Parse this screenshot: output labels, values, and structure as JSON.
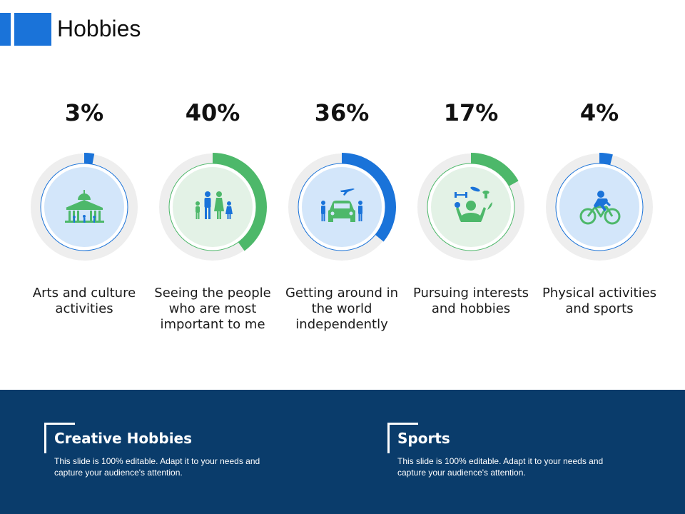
{
  "slide": {
    "title": "Hobbies"
  },
  "colors": {
    "blue_accent": "#1a73d9",
    "green_accent": "#4db86a",
    "track": "#eeeeee",
    "blue_fill": "#d3e6fa",
    "green_fill": "#e3f2e6",
    "footer_bg": "#0a3c6b"
  },
  "chart_data": {
    "type": "pie",
    "categories": [
      "Arts and culture activities",
      "Seeing the people who are most important to me",
      "Getting around in the world independently",
      "Pursuing interests and hobbies",
      "Physical activities and sports"
    ],
    "values": [
      3,
      40,
      36,
      17,
      4
    ],
    "value_labels": [
      "3%",
      "40%",
      "36%",
      "17%",
      "4%"
    ],
    "items": [
      {
        "value": 3,
        "value_label": "3%",
        "label": "Arts and culture activities",
        "color": "blue",
        "icon": "museum-icon"
      },
      {
        "value": 40,
        "value_label": "40%",
        "label": "Seeing the people who are most important to me",
        "color": "green",
        "icon": "family-icon"
      },
      {
        "value": 36,
        "value_label": "36%",
        "label": "Getting around in the world independently",
        "color": "blue",
        "icon": "travel-car-icon"
      },
      {
        "value": 17,
        "value_label": "17%",
        "label": "Pursuing interests and hobbies",
        "color": "green",
        "icon": "interests-person-icon"
      },
      {
        "value": 4,
        "value_label": "4%",
        "label": "Physical activities and sports",
        "color": "blue",
        "icon": "cyclist-icon"
      }
    ]
  },
  "footer": {
    "cards": [
      {
        "title": "Creative Hobbies",
        "text": "This slide is 100% editable. Adapt it to your needs and capture your audience's attention."
      },
      {
        "title": "Sports",
        "text": "This slide is 100% editable. Adapt it to your needs and capture your audience's attention."
      }
    ]
  }
}
